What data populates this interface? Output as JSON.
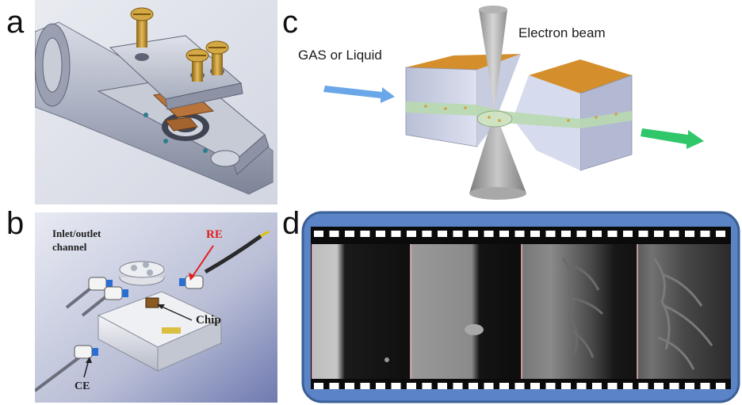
{
  "panels": {
    "a": {
      "letter": "a"
    },
    "b": {
      "letter": "b",
      "labels": {
        "inlet": "Inlet/outlet\nchannel",
        "re": "RE",
        "chip": "Chip",
        "ce": "CE"
      }
    },
    "c": {
      "letter": "c",
      "labels": {
        "beam": "Electron beam",
        "gas": "GAS or Liquid"
      }
    },
    "d": {
      "letter": "d",
      "frames": 4
    }
  },
  "colors": {
    "metal": "#b8bccb",
    "brass": "#c99a3c",
    "copper": "#b8743a",
    "orange_block": "#d48f2c",
    "inlet_arrow": "#6aa7e8",
    "outlet_arrow": "#2fc76a",
    "re_label": "#e02020",
    "film_border": "#3a5f95",
    "film_fill": "#5b84c6"
  }
}
